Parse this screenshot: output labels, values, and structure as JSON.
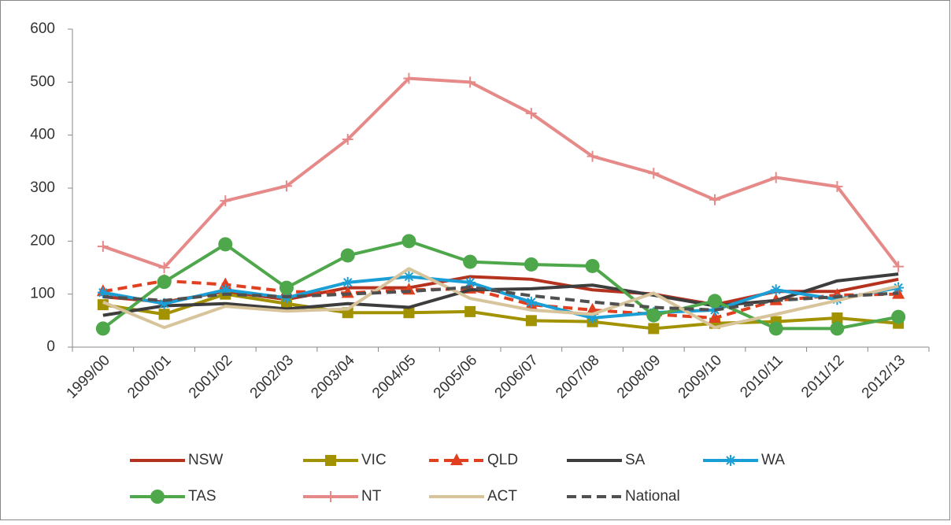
{
  "chart_data": {
    "type": "line",
    "categories": [
      "1999/00",
      "2000/01",
      "2001/02",
      "2002/03",
      "2003/04",
      "2004/05",
      "2005/06",
      "2006/07",
      "2007/08",
      "2008/09",
      "2009/10",
      "2010/11",
      "2011/12",
      "2012/13"
    ],
    "ylim": [
      0,
      600
    ],
    "yticks": [
      0,
      100,
      200,
      300,
      400,
      500,
      600
    ],
    "grid": false,
    "legend": "bottom",
    "series": [
      {
        "name": "NSW",
        "color": "#b5321f",
        "marker": "none",
        "dashed": false,
        "values": [
          95,
          85,
          105,
          90,
          112,
          112,
          133,
          128,
          108,
          100,
          80,
          105,
          105,
          128
        ]
      },
      {
        "name": "VIC",
        "color": "#a39200",
        "marker": "square",
        "dashed": false,
        "values": [
          80,
          62,
          100,
          82,
          65,
          65,
          67,
          50,
          48,
          35,
          45,
          48,
          55,
          45
        ]
      },
      {
        "name": "QLD",
        "color": "#e0401f",
        "marker": "triangle",
        "dashed": true,
        "values": [
          105,
          125,
          118,
          105,
          102,
          108,
          110,
          80,
          70,
          62,
          55,
          88,
          98,
          100
        ]
      },
      {
        "name": "SA",
        "color": "#3d3d3d",
        "marker": "none",
        "dashed": false,
        "values": [
          60,
          78,
          82,
          72,
          82,
          75,
          108,
          110,
          117,
          98,
          78,
          88,
          125,
          138
        ]
      },
      {
        "name": "WA",
        "color": "#1a9ed6",
        "marker": "asterisk",
        "dashed": false,
        "values": [
          103,
          82,
          108,
          93,
          122,
          133,
          122,
          85,
          55,
          65,
          70,
          108,
          90,
          112
        ]
      },
      {
        "name": "TAS",
        "color": "#4ea74a",
        "marker": "circle",
        "dashed": false,
        "values": [
          35,
          123,
          194,
          112,
          173,
          200,
          161,
          156,
          153,
          60,
          87,
          35,
          35,
          57
        ]
      },
      {
        "name": "NT",
        "color": "#e58a88",
        "marker": "plus",
        "dashed": false,
        "values": [
          190,
          150,
          276,
          304,
          392,
          507,
          500,
          441,
          360,
          328,
          278,
          320,
          303,
          152
        ]
      },
      {
        "name": "ACT",
        "color": "#d8c49b",
        "marker": "none",
        "dashed": false,
        "values": [
          85,
          37,
          77,
          68,
          72,
          148,
          92,
          70,
          62,
          102,
          37,
          62,
          88,
          115
        ]
      },
      {
        "name": "National",
        "color": "#505050",
        "marker": "none",
        "dashed": true,
        "values": [
          95,
          88,
          100,
          95,
          100,
          105,
          113,
          97,
          85,
          75,
          70,
          88,
          95,
          102
        ]
      }
    ]
  }
}
